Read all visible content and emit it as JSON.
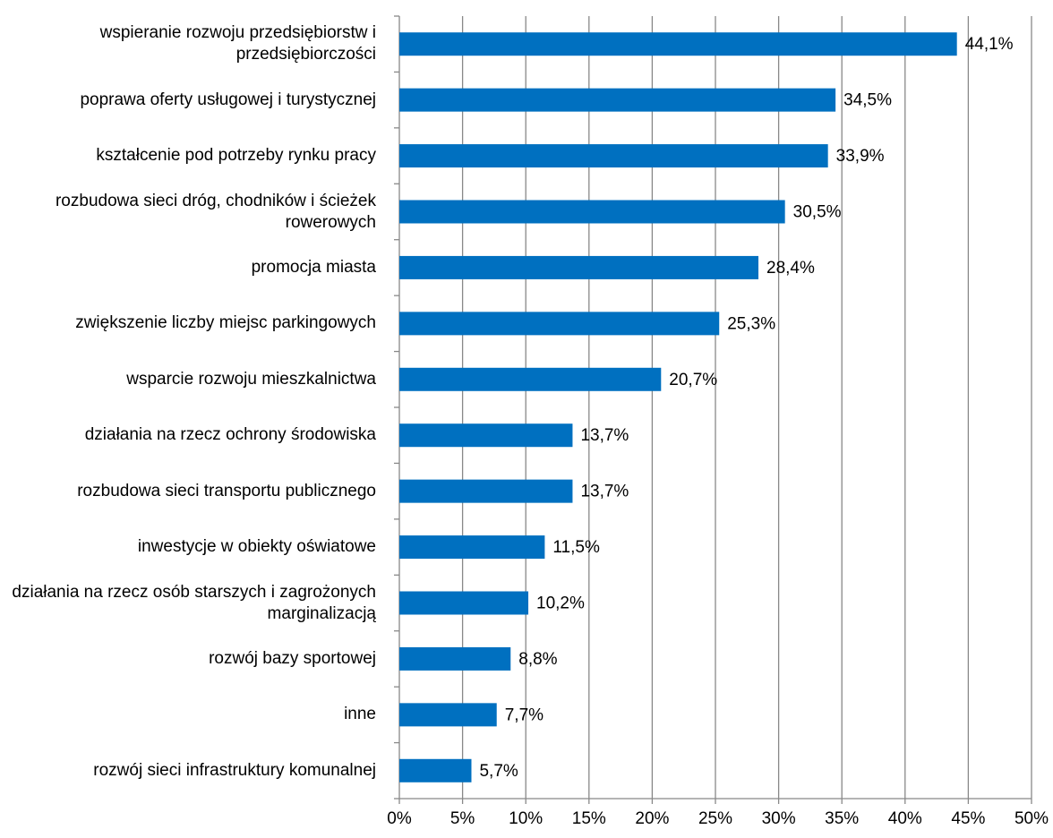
{
  "chart_data": {
    "type": "barh",
    "categories": [
      "wspieranie rozwoju przedsiębiorstw i przedsiębiorczości",
      "poprawa oferty usługowej i turystycznej",
      "kształcenie pod potrzeby rynku pracy",
      "rozbudowa sieci dróg, chodników i ścieżek rowerowych",
      "promocja miasta",
      "zwiększenie liczby miejsc parkingowych",
      "wsparcie rozwoju mieszkalnictwa",
      "działania na rzecz ochrony środowiska",
      "rozbudowa sieci transportu publicznego",
      "inwestycje w obiekty oświatowe",
      "działania na rzecz osób starszych i zagrożonych marginalizacją",
      "rozwój bazy sportowej",
      "inne",
      "rozwój sieci infrastruktury komunalnej"
    ],
    "values": [
      44.1,
      34.5,
      33.9,
      30.5,
      28.4,
      25.3,
      20.7,
      13.7,
      13.7,
      11.5,
      10.2,
      8.8,
      7.7,
      5.7
    ],
    "value_labels": [
      "44,1%",
      "34,5%",
      "33,9%",
      "30,5%",
      "28,4%",
      "25,3%",
      "20,7%",
      "13,7%",
      "13,7%",
      "11,5%",
      "10,2%",
      "8,8%",
      "7,7%",
      "5,7%"
    ],
    "color": "#0070c0",
    "xlim": [
      0,
      50
    ],
    "xticks": [
      {
        "value": 0,
        "label": "0%"
      },
      {
        "value": 5,
        "label": "5%"
      },
      {
        "value": 10,
        "label": "10%"
      },
      {
        "value": 15,
        "label": "15%"
      },
      {
        "value": 20,
        "label": "20%"
      },
      {
        "value": 25,
        "label": "25%"
      },
      {
        "value": 30,
        "label": "30%"
      },
      {
        "value": 35,
        "label": "35%"
      },
      {
        "value": 40,
        "label": "40%"
      },
      {
        "value": 45,
        "label": "45%"
      },
      {
        "value": 50,
        "label": "50%"
      }
    ],
    "grid": true
  }
}
